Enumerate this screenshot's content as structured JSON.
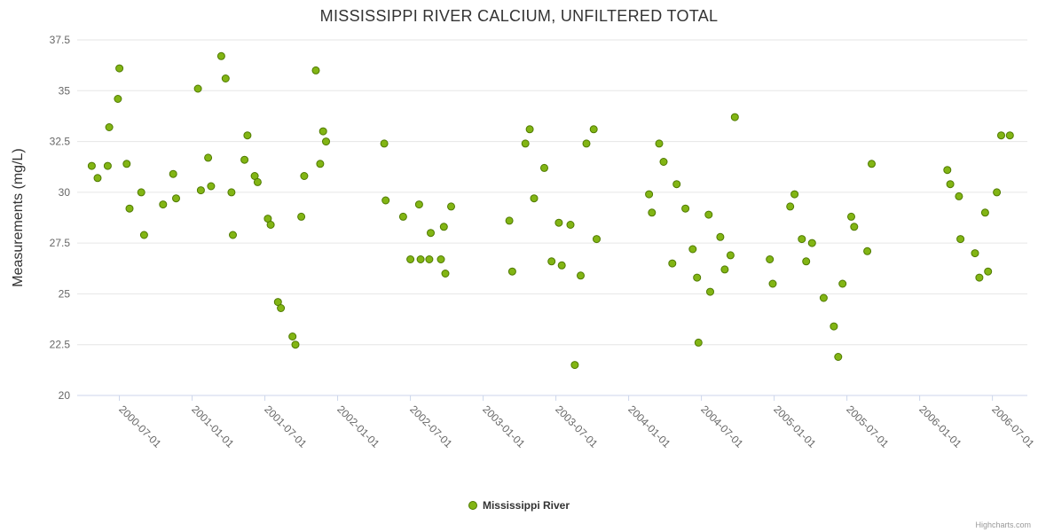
{
  "chart": {
    "title": "MISSISSIPPI RIVER CALCIUM, UNFILTERED TOTAL"
  },
  "legend": {
    "label": "Mississippi River"
  },
  "credits": {
    "text": "Highcharts.com"
  },
  "colors": {
    "marker_fill": "#82b514",
    "marker_stroke": "#4f7a00",
    "gridline": "#e6e6e6",
    "axis_line": "#ccd6eb",
    "tick_label": "#666666",
    "title_text": "#333333"
  },
  "chart_data": {
    "type": "scatter",
    "title": "MISSISSIPPI RIVER CALCIUM, UNFILTERED TOTAL",
    "xlabel": "",
    "ylabel": "Measurements (mg/L)",
    "ylim": [
      20,
      37.5
    ],
    "xlim": [
      2000.21,
      2006.74
    ],
    "y_ticks": [
      20,
      22.5,
      25,
      27.5,
      30,
      32.5,
      35,
      37.5
    ],
    "x_tick_positions": [
      2000.5,
      2001.0,
      2001.5,
      2002.0,
      2002.5,
      2003.0,
      2003.5,
      2004.0,
      2004.5,
      2005.0,
      2005.5,
      2006.0,
      2006.5
    ],
    "x_tick_labels": [
      "2000-07-01",
      "2001-01-01",
      "2001-07-01",
      "2002-01-01",
      "2002-07-01",
      "2003-01-01",
      "2003-07-01",
      "2004-01-01",
      "2004-07-01",
      "2005-01-01",
      "2005-07-01",
      "2006-01-01",
      "2006-07-01"
    ],
    "grid": "horizontal",
    "legend_position": "bottom-center",
    "series": [
      {
        "name": "Mississippi River",
        "color": "#82b514",
        "marker_stroke": "#4f7a00",
        "points": [
          [
            2000.31,
            31.3
          ],
          [
            2000.35,
            30.7
          ],
          [
            2000.42,
            31.3
          ],
          [
            2000.43,
            33.2
          ],
          [
            2000.49,
            34.6
          ],
          [
            2000.5,
            36.1
          ],
          [
            2000.55,
            31.4
          ],
          [
            2000.57,
            29.2
          ],
          [
            2000.65,
            30.0
          ],
          [
            2000.67,
            27.9
          ],
          [
            2000.8,
            29.4
          ],
          [
            2000.87,
            30.9
          ],
          [
            2000.89,
            29.7
          ],
          [
            2001.04,
            35.1
          ],
          [
            2001.06,
            30.1
          ],
          [
            2001.11,
            31.7
          ],
          [
            2001.13,
            30.3
          ],
          [
            2001.2,
            36.7
          ],
          [
            2001.23,
            35.6
          ],
          [
            2001.27,
            30.0
          ],
          [
            2001.28,
            27.9
          ],
          [
            2001.36,
            31.6
          ],
          [
            2001.38,
            32.8
          ],
          [
            2001.43,
            30.8
          ],
          [
            2001.45,
            30.5
          ],
          [
            2001.52,
            28.7
          ],
          [
            2001.54,
            28.4
          ],
          [
            2001.59,
            24.6
          ],
          [
            2001.61,
            24.3
          ],
          [
            2001.69,
            22.9
          ],
          [
            2001.71,
            22.5
          ],
          [
            2001.75,
            28.8
          ],
          [
            2001.77,
            30.8
          ],
          [
            2001.85,
            36.0
          ],
          [
            2001.88,
            31.4
          ],
          [
            2001.9,
            33.0
          ],
          [
            2001.92,
            32.5
          ],
          [
            2002.32,
            32.4
          ],
          [
            2002.33,
            29.6
          ],
          [
            2002.45,
            28.8
          ],
          [
            2002.5,
            26.7
          ],
          [
            2002.56,
            29.4
          ],
          [
            2002.57,
            26.7
          ],
          [
            2002.63,
            26.7
          ],
          [
            2002.64,
            28.0
          ],
          [
            2002.71,
            26.7
          ],
          [
            2002.73,
            28.3
          ],
          [
            2002.74,
            26.0
          ],
          [
            2002.78,
            29.3
          ],
          [
            2003.18,
            28.6
          ],
          [
            2003.2,
            26.1
          ],
          [
            2003.29,
            32.4
          ],
          [
            2003.32,
            33.1
          ],
          [
            2003.35,
            29.7
          ],
          [
            2003.42,
            31.2
          ],
          [
            2003.47,
            26.6
          ],
          [
            2003.52,
            28.5
          ],
          [
            2003.54,
            26.4
          ],
          [
            2003.6,
            28.4
          ],
          [
            2003.63,
            21.5
          ],
          [
            2003.67,
            25.9
          ],
          [
            2003.71,
            32.4
          ],
          [
            2003.76,
            33.1
          ],
          [
            2003.78,
            27.7
          ],
          [
            2004.14,
            29.9
          ],
          [
            2004.16,
            29.0
          ],
          [
            2004.21,
            32.4
          ],
          [
            2004.24,
            31.5
          ],
          [
            2004.3,
            26.5
          ],
          [
            2004.33,
            30.4
          ],
          [
            2004.39,
            29.2
          ],
          [
            2004.44,
            27.2
          ],
          [
            2004.47,
            25.8
          ],
          [
            2004.48,
            22.6
          ],
          [
            2004.55,
            28.9
          ],
          [
            2004.56,
            25.1
          ],
          [
            2004.63,
            27.8
          ],
          [
            2004.66,
            26.2
          ],
          [
            2004.7,
            26.9
          ],
          [
            2004.73,
            33.7
          ],
          [
            2004.97,
            26.7
          ],
          [
            2004.99,
            25.5
          ],
          [
            2005.11,
            29.3
          ],
          [
            2005.14,
            29.9
          ],
          [
            2005.19,
            27.7
          ],
          [
            2005.22,
            26.6
          ],
          [
            2005.26,
            27.5
          ],
          [
            2005.34,
            24.8
          ],
          [
            2005.41,
            23.4
          ],
          [
            2005.44,
            21.9
          ],
          [
            2005.47,
            25.5
          ],
          [
            2005.53,
            28.8
          ],
          [
            2005.55,
            28.3
          ],
          [
            2005.64,
            27.1
          ],
          [
            2005.67,
            31.4
          ],
          [
            2006.19,
            31.1
          ],
          [
            2006.21,
            30.4
          ],
          [
            2006.27,
            29.8
          ],
          [
            2006.28,
            27.7
          ],
          [
            2006.38,
            27.0
          ],
          [
            2006.41,
            25.8
          ],
          [
            2006.45,
            29.0
          ],
          [
            2006.47,
            26.1
          ],
          [
            2006.53,
            30.0
          ],
          [
            2006.56,
            32.8
          ],
          [
            2006.62,
            32.8
          ]
        ]
      }
    ]
  }
}
